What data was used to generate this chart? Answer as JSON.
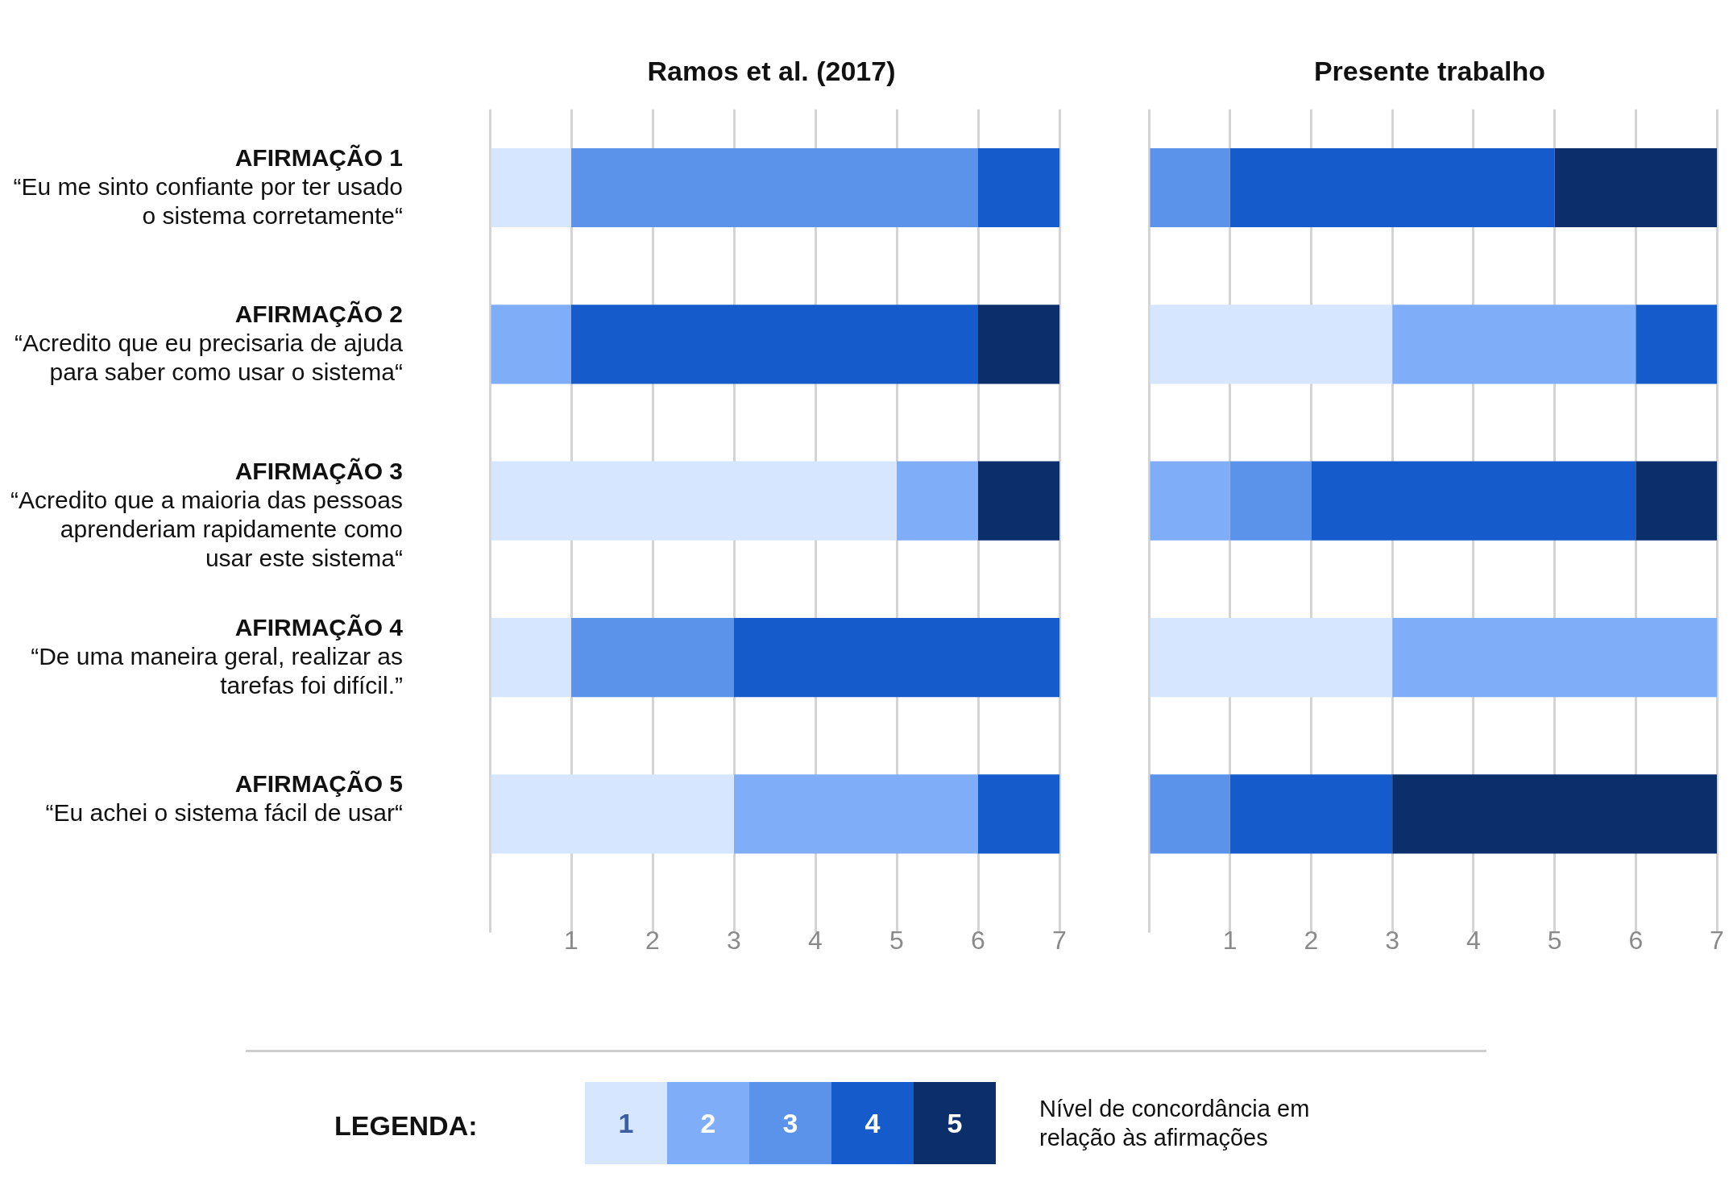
{
  "chart_data": [
    {
      "type": "bar",
      "orientation": "horizontal",
      "stacked": true,
      "title": "Ramos et al. (2017)",
      "categories": [
        "AFIRMAÇÃO 1\n“Eu me sinto confiante por ter usado o sistema corretamente“",
        "AFIRMAÇÃO 2\n“Acredito que eu precisaria de ajuda para saber como usar o sistema“",
        "AFIRMAÇÃO 3\n“Acredito que a maioria das pessoas aprenderiam rapidamente como usar este sistema“",
        "AFIRMAÇÃO 4\n“De uma maneira geral, realizar as tarefas foi difícil.”",
        "AFIRMAÇÃO 5\n“Eu achei o sistema fácil de usar“"
      ],
      "series": [
        {
          "name": "1",
          "color": "#d6e6fe",
          "values": [
            1,
            0,
            5,
            1,
            3
          ]
        },
        {
          "name": "2",
          "color": "#80adf8",
          "values": [
            0,
            1,
            1,
            0,
            3
          ]
        },
        {
          "name": "3",
          "color": "#5b93ea",
          "values": [
            5,
            0,
            0,
            2,
            0
          ]
        },
        {
          "name": "4",
          "color": "#165bcc",
          "values": [
            1,
            5,
            0,
            4,
            1
          ]
        },
        {
          "name": "5",
          "color": "#0c2f6b",
          "values": [
            0,
            1,
            1,
            0,
            0
          ]
        }
      ],
      "xlim": [
        0,
        7
      ],
      "xticks": [
        {
          "value": 0,
          "label": null
        },
        1,
        2,
        3,
        4,
        5,
        6,
        7
      ],
      "grid": "x",
      "legend": "bottom",
      "legend_title": "LEGENDA:",
      "annotations": [
        "Nível de concordância em relação às afirmações"
      ]
    },
    {
      "type": "bar",
      "orientation": "horizontal",
      "stacked": true,
      "title": "Presente trabalho",
      "categories": [
        null,
        null,
        null,
        null,
        null
      ],
      "series": [
        {
          "color": "#d6e6fe",
          "values": [
            0,
            3,
            0,
            3,
            0
          ]
        },
        {
          "color": "#80adf8",
          "values": [
            0,
            3,
            1,
            4,
            0
          ]
        },
        {
          "color": "#5b93ea",
          "values": [
            1,
            0,
            1,
            0,
            1
          ]
        },
        {
          "color": "#165bcc",
          "values": [
            4,
            1,
            4,
            0,
            2
          ]
        },
        {
          "color": "#0c2f6b",
          "values": [
            2,
            0,
            1,
            0,
            4
          ]
        }
      ],
      "xlim": [
        0,
        7
      ],
      "xticks": [
        {
          "value": 0,
          "label": null
        },
        1,
        2,
        3,
        4,
        5,
        6,
        7
      ],
      "grid": "x",
      "tick_labels": "x"
    }
  ]
}
